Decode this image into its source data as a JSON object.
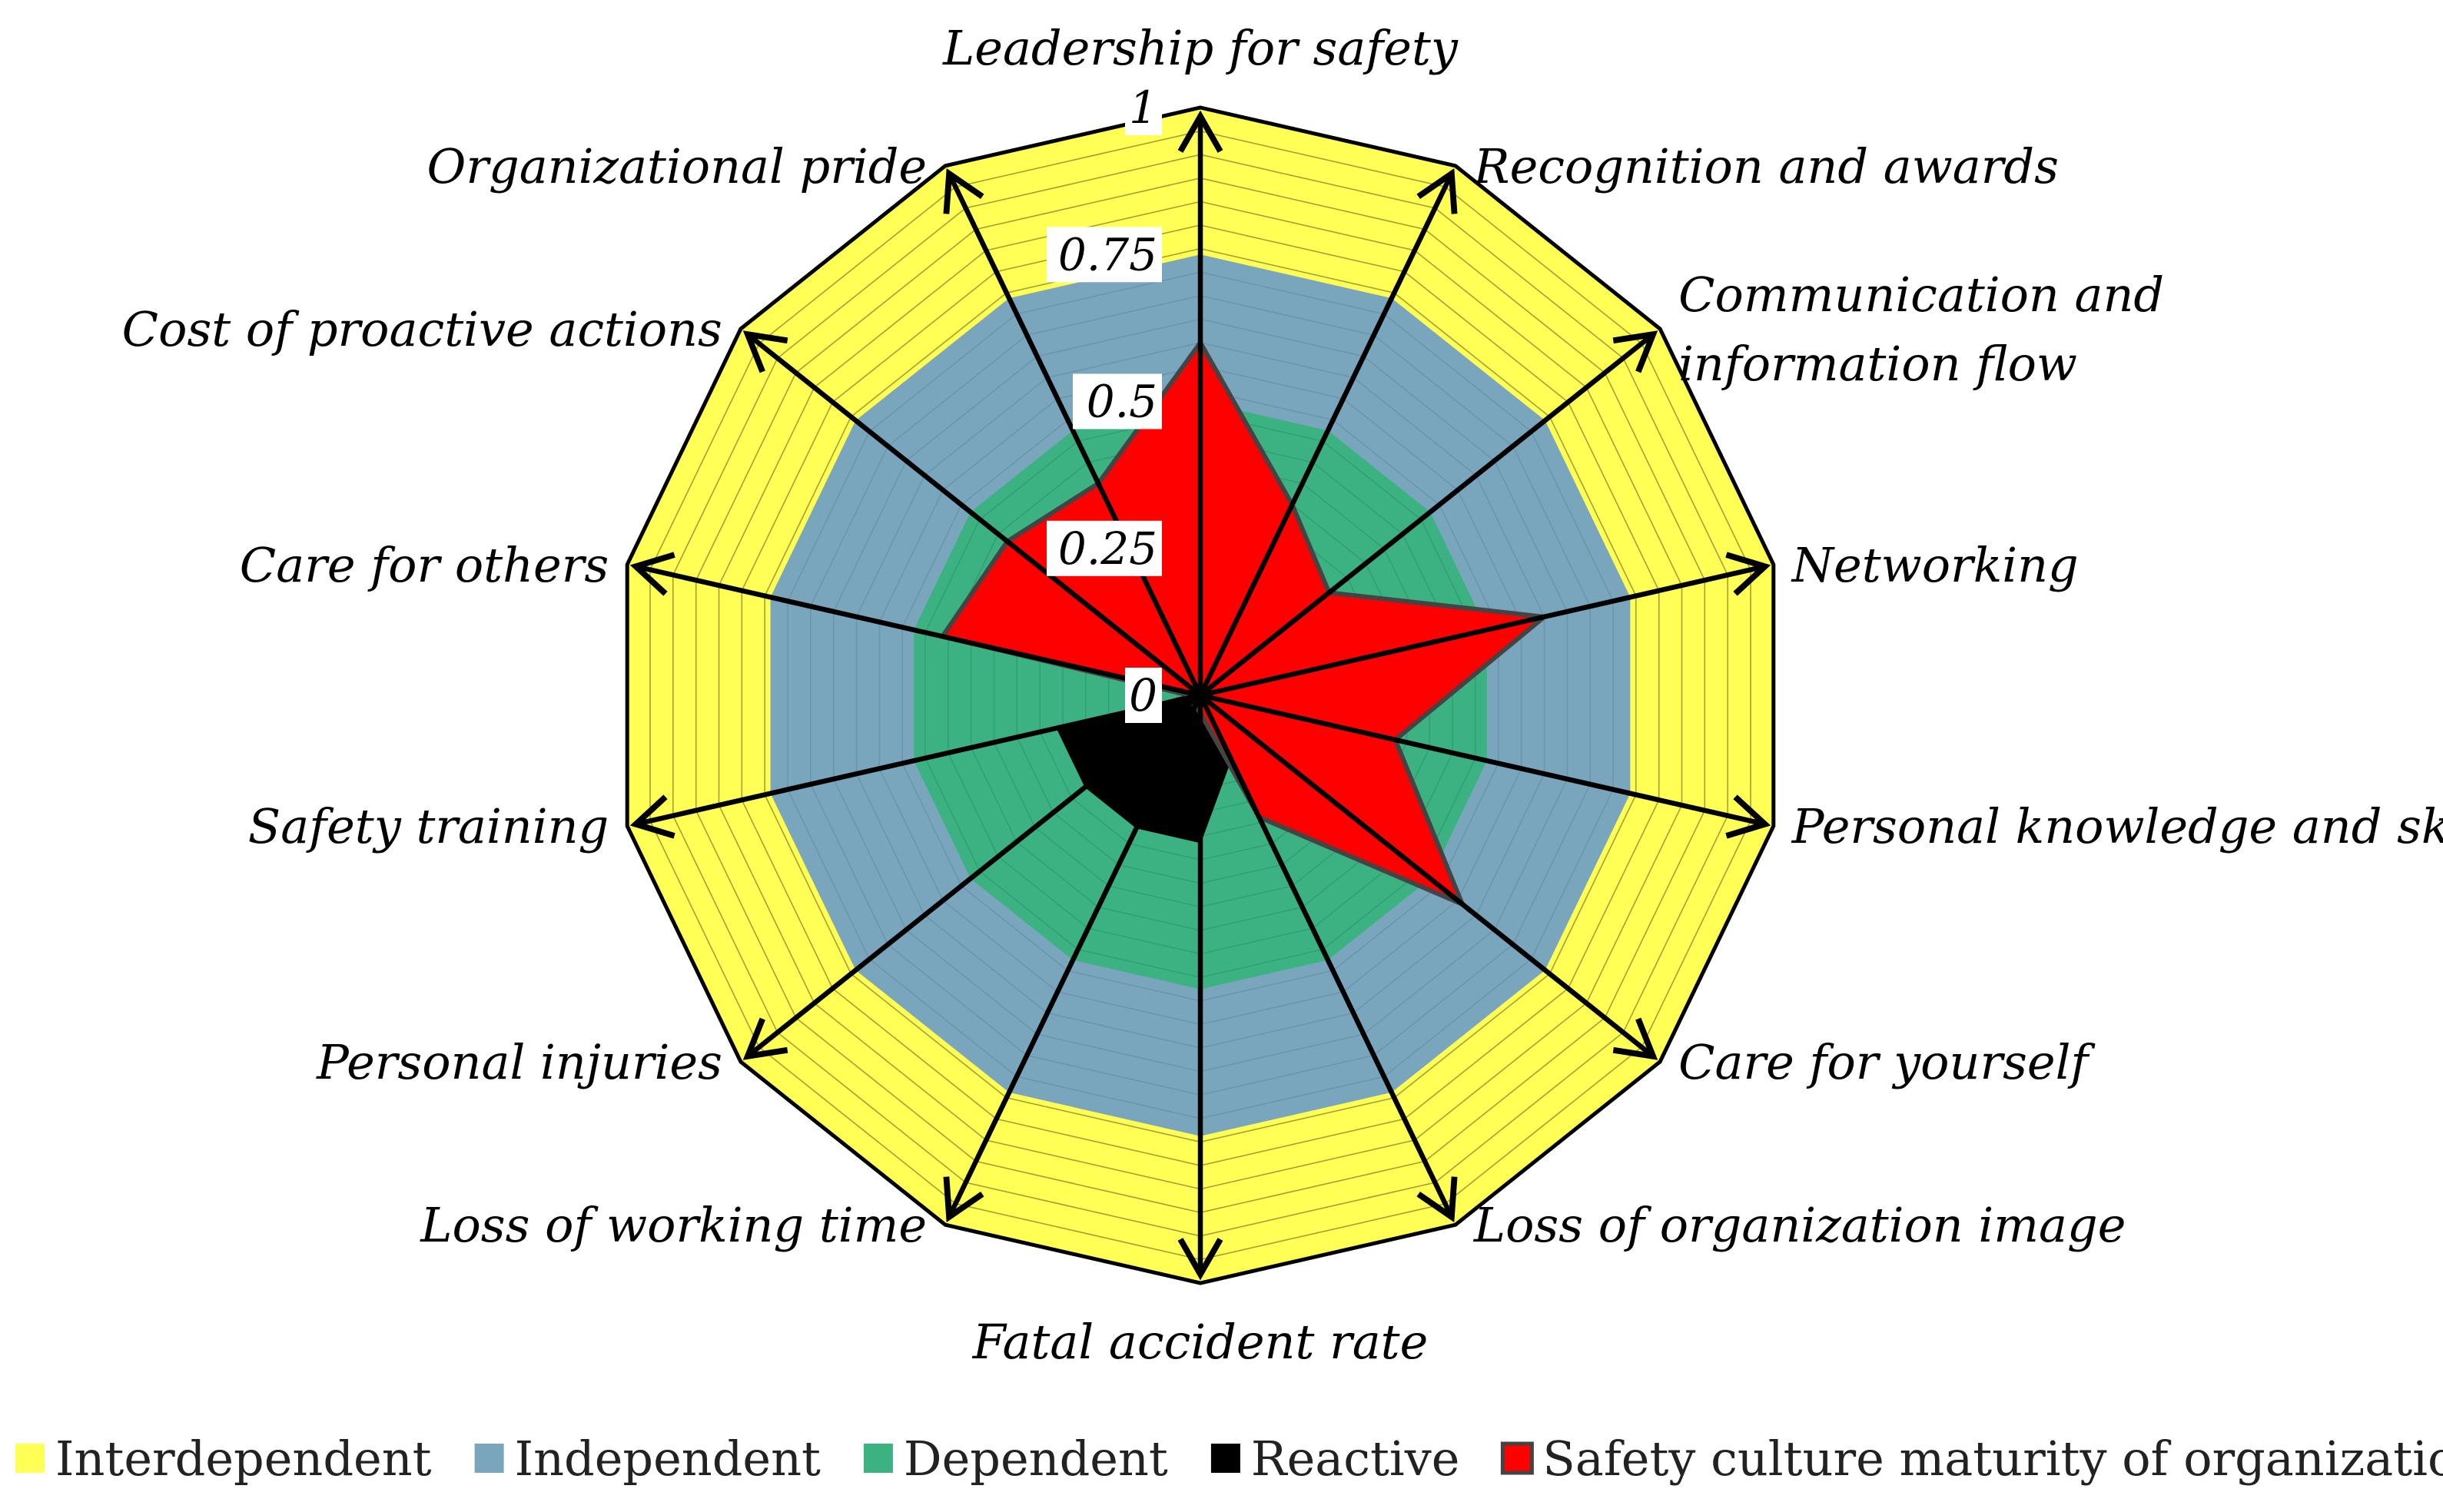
{
  "chart_data": {
    "type": "radar",
    "axes": [
      "Leadership for safety",
      "Recognition and awards",
      "Communication and information flow",
      "Networking",
      "Personal knowledge and skills",
      "Care for yourself",
      "Loss of organization image",
      "Fatal accident rate",
      "Loss of working time",
      "Personal injuries",
      "Safety training",
      "Care for others",
      "Cost of proactive actions",
      "Organizational pride"
    ],
    "axis_label_lines": [
      [
        "Leadership for safety"
      ],
      [
        "Recognition and awards"
      ],
      [
        "Communication and",
        "information flow"
      ],
      [
        "Networking"
      ],
      [
        "Personal knowledge and skills"
      ],
      [
        "Care for yourself"
      ],
      [
        "Loss of organization image"
      ],
      [
        "Fatal accident rate"
      ],
      [
        "Loss of working time"
      ],
      [
        "Personal injuries"
      ],
      [
        "Safety training"
      ],
      [
        "Care for others"
      ],
      [
        "Cost of proactive actions"
      ],
      [
        "Organizational pride"
      ]
    ],
    "rlim": [
      0,
      1
    ],
    "ticks": [
      0,
      0.25,
      0.5,
      0.75,
      1
    ],
    "tick_labels": [
      "0",
      "0.25",
      "0.5",
      "0.75",
      "1"
    ],
    "series": [
      {
        "name": "Interdependent",
        "color": "#ffff55",
        "values": [
          1,
          1,
          1,
          1,
          1,
          1,
          1,
          1,
          1,
          1,
          1,
          1,
          1,
          1
        ]
      },
      {
        "name": "Independent",
        "color": "#7aa6bd",
        "values": [
          0.75,
          0.75,
          0.75,
          0.75,
          0.75,
          0.75,
          0.75,
          0.75,
          0.75,
          0.75,
          0.75,
          0.75,
          0.75,
          0.75
        ]
      },
      {
        "name": "Dependent",
        "color": "#3cb283",
        "values": [
          0.5,
          0.5,
          0.5,
          0.5,
          0.5,
          0.5,
          0.5,
          0.5,
          0.5,
          0.5,
          0.5,
          0.5,
          0.5,
          0.5
        ]
      },
      {
        "name": "Reactive",
        "color": "#000000",
        "values": [
          0.01,
          0.01,
          0.01,
          0.01,
          0.01,
          0.01,
          0.12,
          0.25,
          0.25,
          0.25,
          0.25,
          0.01,
          0.01,
          0.01
        ]
      },
      {
        "name": "Safety culture maturity of organization",
        "color": "#ff0000",
        "values": [
          0.6,
          0.36,
          0.28,
          0.6,
          0.34,
          0.57,
          0.23,
          0.03,
          0.02,
          0.02,
          0.01,
          0.45,
          0.42,
          0.4
        ]
      }
    ],
    "legend_position": "bottom"
  }
}
